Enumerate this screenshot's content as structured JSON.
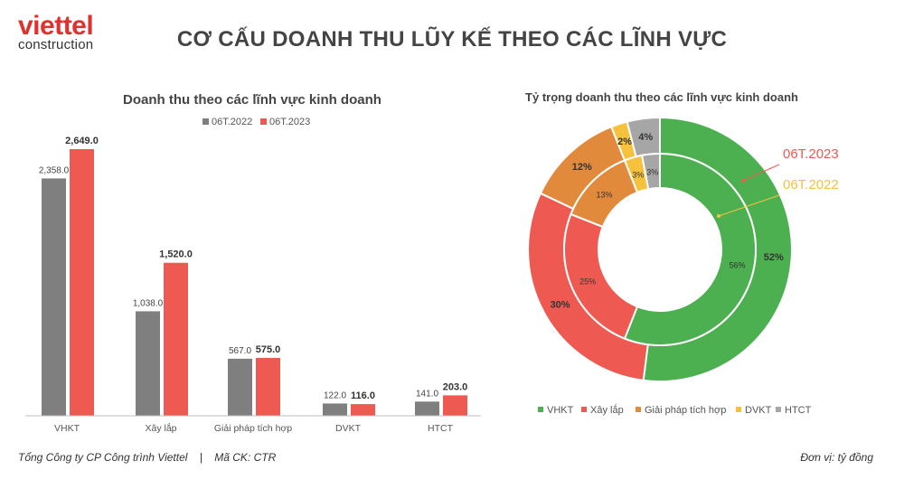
{
  "header": {
    "logo_main": "viettel",
    "logo_sub": "construction",
    "title": "CƠ CẤU DOANH THU LŨY KẾ THEO CÁC LĨNH VỰC"
  },
  "footer": {
    "company": "Tổng Công ty CP Công trình Viettel",
    "separator": "|",
    "ticker": "Mã CK: CTR",
    "unit": "Đơn vị: tỷ đồng"
  },
  "colors": {
    "s2022": "#7f7f7f",
    "s2023": "#ee5a52",
    "VHKT": "#4caf50",
    "Xây lắp": "#ee5a52",
    "Giải pháp tích hợp": "#e28a3c",
    "DVKT": "#f6c23e",
    "HTCT": "#a6a6a6"
  },
  "chart_data": [
    {
      "type": "bar",
      "title": "Doanh thu theo các lĩnh vực kinh doanh",
      "categories": [
        "VHKT",
        "Xây lắp",
        "Giải pháp tích hợp",
        "DVKT",
        "HTCT"
      ],
      "series": [
        {
          "name": "06T.2022",
          "values": [
            2358.0,
            1038.0,
            567.0,
            122.0,
            141.0
          ],
          "labels": [
            "2,358.0",
            "1,038.0",
            "567.0",
            "122.0",
            "141.0"
          ]
        },
        {
          "name": "06T.2023",
          "values": [
            2649.0,
            1520.0,
            575.0,
            116.0,
            203.0
          ],
          "labels": [
            "2,649.0",
            "1,520.0",
            "575.0",
            "116.0",
            "203.0"
          ]
        }
      ],
      "ylim": [
        0,
        2649
      ],
      "grid": false,
      "legend": "top-center"
    },
    {
      "type": "pie",
      "title": "Tỷ trọng doanh thu theo các lĩnh vực kinh doanh",
      "categories": [
        "VHKT",
        "Xây lắp",
        "Giải pháp tích hợp",
        "DVKT",
        "HTCT"
      ],
      "series": [
        {
          "name": "06T.2023",
          "ring": "outer",
          "values": [
            52,
            30,
            12,
            2,
            4
          ],
          "labels": [
            "52%",
            "30%",
            "12%",
            "2%",
            "4%"
          ]
        },
        {
          "name": "06T.2022",
          "ring": "inner",
          "values": [
            56,
            25,
            13,
            3,
            3
          ],
          "labels": [
            "56%",
            "25%",
            "13%",
            "3%",
            "3%"
          ]
        }
      ],
      "legend": "bottom"
    }
  ]
}
